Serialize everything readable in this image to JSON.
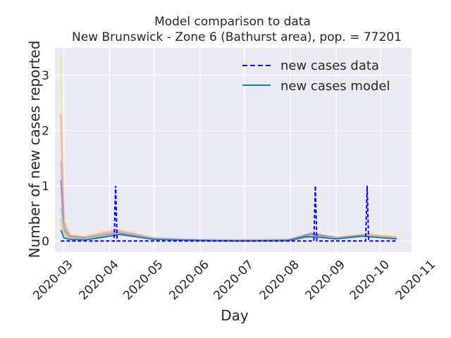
{
  "chart_data": {
    "type": "line",
    "title": "Model comparison to data",
    "subtitle": "New Brunswick - Zone 6 (Bathurst area), pop. = 77201",
    "xlabel": "Day",
    "ylabel": "Number of new cases reported",
    "x_range": [
      "2020-02-24",
      "2020-10-22"
    ],
    "ylim": [
      -0.2,
      3.5
    ],
    "x_ticks": [
      "2020-03",
      "2020-04",
      "2020-05",
      "2020-06",
      "2020-07",
      "2020-08",
      "2020-09",
      "2020-10",
      "2020-11"
    ],
    "y_ticks": [
      "0",
      "1",
      "2",
      "3"
    ],
    "grid": true,
    "legend_position": "top-right",
    "legend": [
      {
        "label": "new cases data",
        "color": "#0000ff",
        "style": "dashed"
      },
      {
        "label": "new cases model",
        "color": "#1f77b4",
        "style": "solid"
      }
    ],
    "series": [
      {
        "name": "new cases data",
        "x": [
          "2020-02-28",
          "2020-04-04",
          "2020-04-05",
          "2020-04-06",
          "2020-08-17",
          "2020-08-18",
          "2020-08-19",
          "2020-09-21",
          "2020-09-22",
          "2020-09-23",
          "2020-10-12"
        ],
        "y": [
          0,
          0,
          1,
          0,
          0,
          1,
          0,
          0,
          1,
          0,
          0
        ]
      },
      {
        "name": "new cases model",
        "x": [
          "2020-02-28",
          "2020-03-01",
          "2020-03-05",
          "2020-03-15",
          "2020-03-28",
          "2020-04-08",
          "2020-05-01",
          "2020-06-01",
          "2020-07-01",
          "2020-07-31",
          "2020-08-12",
          "2020-08-20",
          "2020-09-01",
          "2020-09-18",
          "2020-10-12"
        ],
        "y": [
          0.2,
          0.06,
          0.03,
          0.02,
          0.07,
          0.12,
          0.03,
          0.01,
          0.0,
          0.01,
          0.08,
          0.07,
          0.04,
          0.09,
          0.04
        ]
      }
    ],
    "ensemble": [
      {
        "color": "#f2e8a0",
        "x": [
          "2020-02-28",
          "2020-03-01",
          "2020-03-05",
          "2020-03-15",
          "2020-03-28",
          "2020-04-06",
          "2020-05-01",
          "2020-06-01",
          "2020-07-31",
          "2020-08-15",
          "2020-09-02",
          "2020-09-20",
          "2020-10-12"
        ],
        "y": [
          3.35,
          0.5,
          0.12,
          0.08,
          0.18,
          0.22,
          0.06,
          0.02,
          0.03,
          0.12,
          0.07,
          0.13,
          0.08
        ]
      },
      {
        "color": "#f3a78f",
        "x": [
          "2020-02-28",
          "2020-03-01",
          "2020-03-05",
          "2020-03-15",
          "2020-03-28",
          "2020-04-06",
          "2020-05-01",
          "2020-06-01",
          "2020-07-31",
          "2020-08-15",
          "2020-09-02",
          "2020-09-20",
          "2020-10-12"
        ],
        "y": [
          2.3,
          0.35,
          0.1,
          0.07,
          0.15,
          0.2,
          0.05,
          0.02,
          0.02,
          0.1,
          0.06,
          0.12,
          0.07
        ]
      },
      {
        "color": "#c9a3d9",
        "x": [
          "2020-02-28",
          "2020-03-01",
          "2020-03-05",
          "2020-03-15",
          "2020-03-28",
          "2020-04-06",
          "2020-05-01",
          "2020-06-01",
          "2020-07-31",
          "2020-08-15",
          "2020-09-02",
          "2020-09-20",
          "2020-10-12"
        ],
        "y": [
          1.45,
          0.25,
          0.09,
          0.06,
          0.12,
          0.17,
          0.05,
          0.02,
          0.02,
          0.14,
          0.06,
          0.11,
          0.06
        ]
      },
      {
        "color": "#9b7fb0",
        "x": [
          "2020-02-28",
          "2020-03-01",
          "2020-03-05",
          "2020-03-15",
          "2020-03-28",
          "2020-04-06",
          "2020-05-01",
          "2020-06-01",
          "2020-07-31",
          "2020-08-15",
          "2020-09-02",
          "2020-09-20",
          "2020-10-12"
        ],
        "y": [
          1.1,
          0.2,
          0.08,
          0.05,
          0.1,
          0.15,
          0.04,
          0.01,
          0.02,
          0.13,
          0.05,
          0.1,
          0.05
        ]
      },
      {
        "color": "#8fd4c0",
        "x": [
          "2020-02-28",
          "2020-03-01",
          "2020-03-05",
          "2020-03-15",
          "2020-03-28",
          "2020-04-06",
          "2020-05-01",
          "2020-06-01",
          "2020-07-31",
          "2020-08-15",
          "2020-09-02",
          "2020-09-20",
          "2020-10-12"
        ],
        "y": [
          0.6,
          0.15,
          0.06,
          0.04,
          0.09,
          0.13,
          0.04,
          0.01,
          0.01,
          0.09,
          0.05,
          0.09,
          0.05
        ]
      },
      {
        "color": "#e8c66a",
        "x": [
          "2020-02-28",
          "2020-03-01",
          "2020-03-05",
          "2020-03-15",
          "2020-03-28",
          "2020-04-06",
          "2020-05-01",
          "2020-06-01",
          "2020-07-31",
          "2020-08-15",
          "2020-09-02",
          "2020-09-20",
          "2020-10-12"
        ],
        "y": [
          0.4,
          0.12,
          0.05,
          0.04,
          0.08,
          0.12,
          0.04,
          0.01,
          0.01,
          0.08,
          0.05,
          0.1,
          0.06
        ]
      }
    ]
  }
}
